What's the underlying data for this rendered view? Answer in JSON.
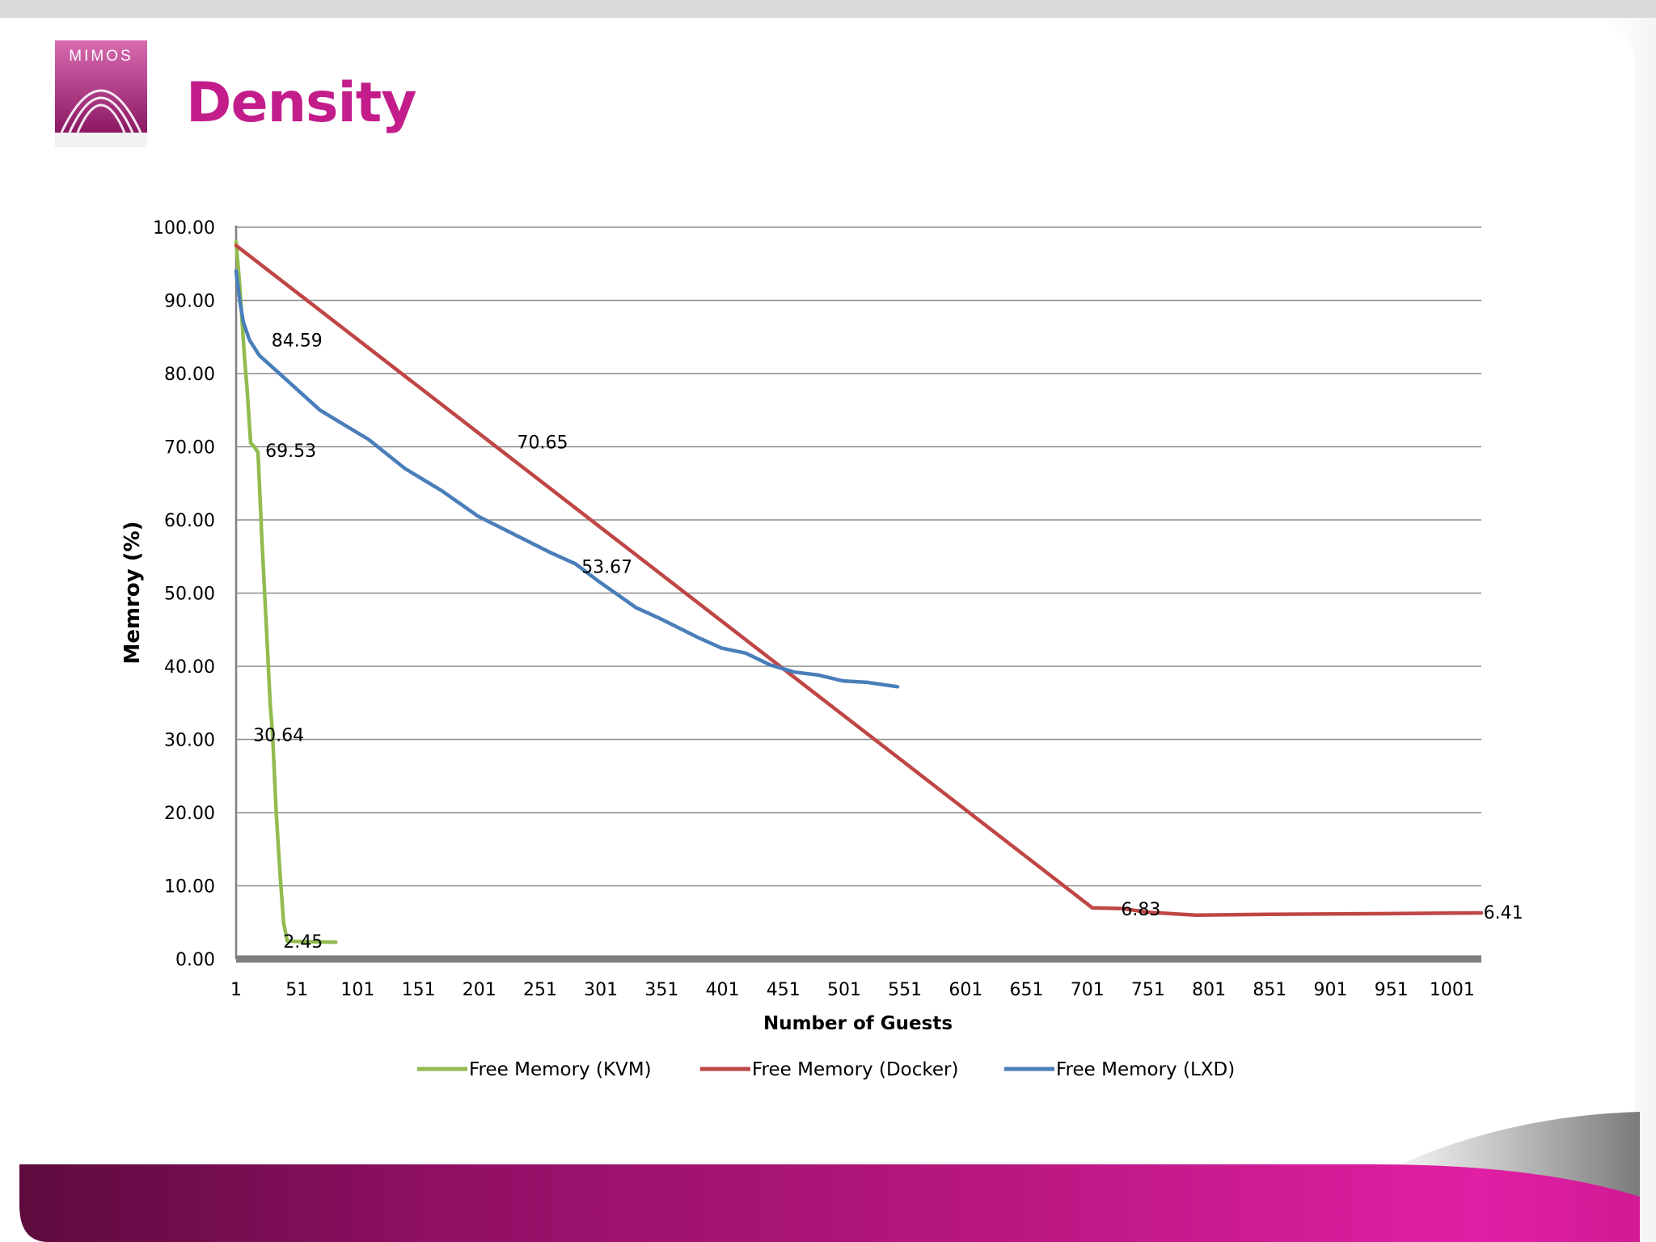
{
  "header": {
    "logo_text": "MIMOS",
    "title": "Density"
  },
  "colors": {
    "accent": "#c31c8b",
    "kvm": "#92bb4f",
    "docker": "#bf4644",
    "lxd": "#4a7ebb",
    "grid": "#8c8c8c",
    "axis": "#7f7f7f"
  },
  "chart_data": {
    "type": "line",
    "title": "",
    "xlabel": "Number of Guests",
    "ylabel": "Memroy (%)",
    "xlim": [
      1,
      1025
    ],
    "ylim": [
      0,
      100
    ],
    "x_ticks": [
      "1",
      "51",
      "101",
      "151",
      "201",
      "251",
      "301",
      "351",
      "401",
      "451",
      "501",
      "551",
      "601",
      "651",
      "701",
      "751",
      "801",
      "851",
      "901",
      "951",
      "1001"
    ],
    "y_ticks": [
      "0.00",
      "10.00",
      "20.00",
      "30.00",
      "40.00",
      "50.00",
      "60.00",
      "70.00",
      "80.00",
      "90.00",
      "100.00"
    ],
    "grid": true,
    "legend_position": "bottom",
    "series": [
      {
        "name": "Free Memory (KVM)",
        "points": [
          [
            1,
            98
          ],
          [
            4,
            92
          ],
          [
            8,
            82
          ],
          [
            10,
            78
          ],
          [
            13,
            70.5
          ],
          [
            16,
            70
          ],
          [
            19,
            69.2
          ],
          [
            22,
            58
          ],
          [
            26,
            45
          ],
          [
            29,
            35
          ],
          [
            31,
            30.64
          ],
          [
            34,
            20
          ],
          [
            37,
            12
          ],
          [
            40,
            5
          ],
          [
            43,
            2.45
          ],
          [
            50,
            2.4
          ],
          [
            65,
            2.35
          ],
          [
            83,
            2.3
          ]
        ]
      },
      {
        "name": "Free Memory (Docker)",
        "points": [
          [
            1,
            97.5
          ],
          [
            705,
            7.0
          ],
          [
            730,
            6.9
          ],
          [
            750,
            6.4
          ],
          [
            790,
            6.0
          ],
          [
            850,
            6.1
          ],
          [
            950,
            6.2
          ],
          [
            1025,
            6.3
          ]
        ]
      },
      {
        "name": "Free Memory (LXD)",
        "points": [
          [
            1,
            94
          ],
          [
            4,
            90
          ],
          [
            7,
            87
          ],
          [
            12,
            84.6
          ],
          [
            20,
            82.5
          ],
          [
            30,
            81
          ],
          [
            50,
            78
          ],
          [
            70,
            75
          ],
          [
            90,
            73
          ],
          [
            110,
            71
          ],
          [
            140,
            67
          ],
          [
            170,
            64
          ],
          [
            200,
            60.5
          ],
          [
            230,
            58
          ],
          [
            260,
            55.5
          ],
          [
            280,
            54
          ],
          [
            300,
            51.5
          ],
          [
            330,
            48
          ],
          [
            350,
            46.5
          ],
          [
            380,
            44
          ],
          [
            400,
            42.5
          ],
          [
            420,
            41.8
          ],
          [
            440,
            40.2
          ],
          [
            460,
            39.2
          ],
          [
            480,
            38.8
          ],
          [
            500,
            38
          ],
          [
            520,
            37.8
          ],
          [
            545,
            37.2
          ]
        ]
      }
    ],
    "annotations": [
      {
        "text": "84.59",
        "x": 51,
        "y": 84.59
      },
      {
        "text": "69.53",
        "x": 46,
        "y": 69.53
      },
      {
        "text": "30.64",
        "x": 36,
        "y": 30.64
      },
      {
        "text": "2.45",
        "x": 56,
        "y": 2.45
      },
      {
        "text": "70.65",
        "x": 253,
        "y": 70.65
      },
      {
        "text": "53.67",
        "x": 306,
        "y": 53.67
      },
      {
        "text": "6.83",
        "x": 745,
        "y": 6.83
      },
      {
        "text": "6.41",
        "x": 1043,
        "y": 6.41
      }
    ]
  }
}
